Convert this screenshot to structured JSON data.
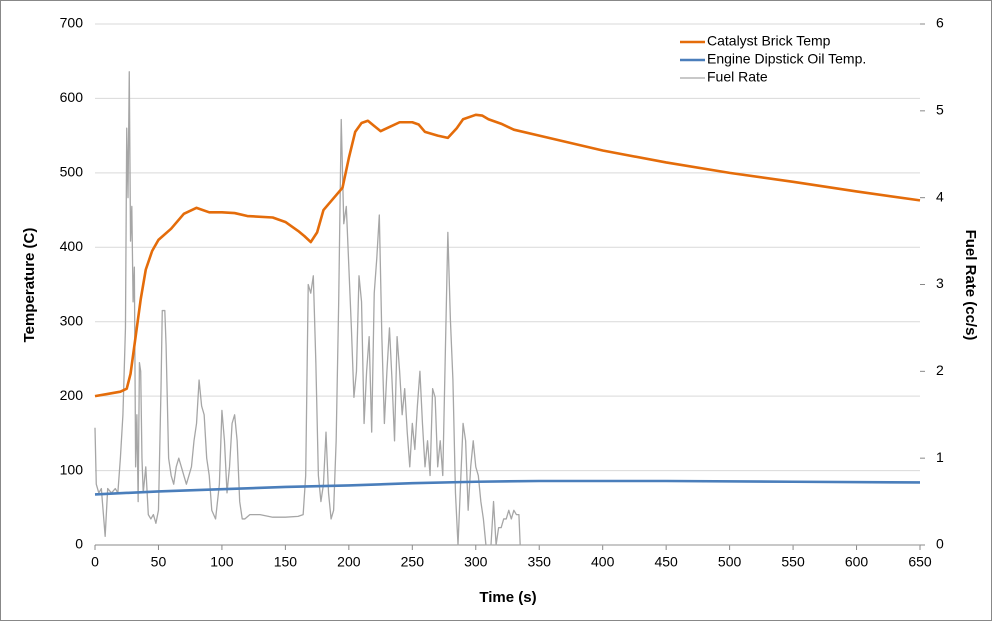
{
  "chart_data": {
    "type": "line",
    "xlabel": "Time (s)",
    "ylabel": "Temperature (C)",
    "y2label": "Fuel Rate (cc/s)",
    "xlim": [
      0,
      650
    ],
    "xticks": [
      0,
      50,
      100,
      150,
      200,
      250,
      300,
      350,
      400,
      450,
      500,
      550,
      600,
      650
    ],
    "ylim": [
      0,
      700
    ],
    "yticks": [
      0,
      100,
      200,
      300,
      400,
      500,
      600,
      700
    ],
    "y2lim": [
      0,
      6
    ],
    "y2ticks": [
      0,
      1,
      2,
      3,
      4,
      5,
      6
    ],
    "grid": true,
    "legend": "upper right",
    "series": [
      {
        "name": "Catalyst Brick Temp",
        "color": "#e46c0a",
        "x": [
          0,
          10,
          20,
          25,
          28,
          32,
          36,
          40,
          45,
          50,
          60,
          70,
          80,
          90,
          100,
          110,
          120,
          140,
          150,
          160,
          165,
          170,
          175,
          180,
          190,
          195,
          200,
          205,
          210,
          215,
          220,
          225,
          230,
          240,
          250,
          255,
          260,
          270,
          278,
          285,
          290,
          300,
          305,
          310,
          320,
          330,
          350,
          400,
          450,
          500,
          550,
          600,
          650
        ],
        "values": [
          200,
          203,
          206,
          210,
          230,
          280,
          330,
          370,
          395,
          410,
          425,
          445,
          453,
          447,
          447,
          446,
          442,
          440,
          434,
          422,
          415,
          407,
          420,
          450,
          470,
          480,
          520,
          555,
          567,
          570,
          563,
          556,
          560,
          568,
          568,
          565,
          555,
          550,
          547,
          560,
          572,
          578,
          577,
          572,
          566,
          558,
          550,
          530,
          514,
          500,
          488,
          475,
          463
        ]
      },
      {
        "name": "Engine Dipstick Oil Temp.",
        "color": "#4a7ebb",
        "x": [
          0,
          50,
          100,
          150,
          200,
          250,
          300,
          350,
          450,
          550,
          650
        ],
        "values": [
          68,
          72,
          75,
          78,
          80,
          83,
          85,
          86,
          86,
          85,
          84
        ]
      },
      {
        "name": "Fuel Rate",
        "color": "#a6a6a6",
        "axis": "y2",
        "x": [
          0,
          1,
          3,
          5,
          8,
          10,
          13,
          16,
          18,
          20,
          22,
          24,
          25,
          26,
          27,
          28,
          29,
          30,
          31,
          32,
          33,
          34,
          35,
          36,
          37,
          38,
          40,
          42,
          44,
          46,
          48,
          50,
          52,
          53,
          55,
          56,
          58,
          60,
          62,
          64,
          66,
          68,
          70,
          72,
          74,
          76,
          78,
          80,
          82,
          84,
          86,
          88,
          90,
          92,
          95,
          98,
          100,
          102,
          104,
          106,
          108,
          110,
          112,
          114,
          116,
          118,
          122,
          130,
          140,
          150,
          160,
          164,
          166,
          168,
          170,
          172,
          174,
          176,
          178,
          180,
          182,
          184,
          186,
          188,
          190,
          192,
          194,
          196,
          198,
          200,
          202,
          204,
          206,
          208,
          210,
          212,
          214,
          216,
          218,
          220,
          222,
          224,
          226,
          228,
          230,
          232,
          234,
          236,
          238,
          240,
          242,
          244,
          246,
          248,
          250,
          252,
          254,
          256,
          258,
          260,
          262,
          264,
          266,
          268,
          270,
          272,
          274,
          276,
          278,
          280,
          282,
          284,
          286,
          288,
          290,
          292,
          294,
          296,
          298,
          300,
          302,
          304,
          306,
          308,
          310,
          312,
          314,
          316,
          318,
          320,
          322,
          324,
          326,
          328,
          330,
          332,
          334,
          335,
          650
        ],
        "values": [
          1.35,
          0.7,
          0.6,
          0.65,
          0.1,
          0.65,
          0.6,
          0.65,
          0.6,
          1.0,
          1.5,
          2.5,
          4.8,
          4.0,
          5.45,
          3.5,
          3.9,
          2.8,
          3.2,
          0.9,
          1.5,
          0.5,
          2.1,
          2.0,
          1.0,
          0.6,
          0.9,
          0.35,
          0.3,
          0.35,
          0.25,
          0.4,
          1.8,
          2.7,
          2.7,
          2.3,
          1.0,
          0.8,
          0.7,
          0.9,
          1.0,
          0.9,
          0.8,
          0.7,
          0.8,
          0.9,
          1.2,
          1.4,
          1.9,
          1.6,
          1.5,
          1.0,
          0.8,
          0.4,
          0.3,
          0.7,
          1.55,
          1.2,
          0.6,
          0.9,
          1.4,
          1.5,
          1.2,
          0.5,
          0.3,
          0.3,
          0.35,
          0.35,
          0.32,
          0.32,
          0.33,
          0.35,
          0.8,
          3.0,
          2.9,
          3.1,
          2.1,
          0.8,
          0.5,
          0.7,
          1.3,
          0.6,
          0.3,
          0.4,
          1.2,
          2.8,
          4.9,
          3.7,
          3.9,
          3.2,
          2.5,
          1.7,
          2.0,
          3.1,
          2.8,
          1.4,
          2.0,
          2.4,
          1.3,
          2.9,
          3.3,
          3.8,
          2.4,
          1.4,
          2.0,
          2.5,
          1.9,
          1.2,
          2.4,
          2.0,
          1.5,
          1.8,
          1.3,
          0.9,
          1.4,
          1.1,
          1.6,
          2.0,
          1.4,
          0.9,
          1.2,
          0.8,
          1.8,
          1.7,
          0.9,
          1.2,
          0.8,
          2.2,
          3.6,
          2.6,
          1.9,
          0.6,
          0.0,
          0.7,
          1.4,
          1.2,
          0.4,
          0.9,
          1.2,
          0.9,
          0.8,
          0.5,
          0.3,
          0.0,
          0.0,
          0.0,
          0.5,
          0.0,
          0.2,
          0.2,
          0.3,
          0.3,
          0.4,
          0.3,
          0.4,
          0.35,
          0.35,
          0.0,
          0.0
        ]
      }
    ]
  }
}
